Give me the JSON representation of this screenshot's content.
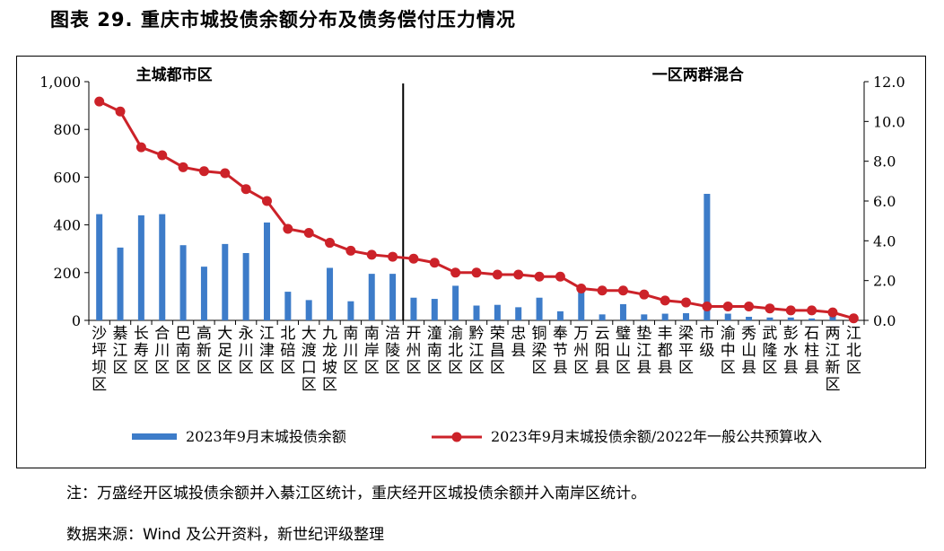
{
  "figure_title": "图表 29. 重庆市城投债余额分布及债务偿付压力情况",
  "note": "注：万盛经开区城投债余额并入綦江区统计，重庆经开区城投债余额并入南岸区统计。",
  "source": "数据来源：Wind 及公开资料，新世纪评级整理",
  "colors": {
    "bar": "#3D7CC9",
    "line": "#CC2229"
  },
  "chart_data": {
    "type": "bar",
    "title": "",
    "regions": [
      {
        "label": "主城都市区",
        "start_index": 0,
        "end_index": 14
      },
      {
        "label": "一区两群混合",
        "start_index": 15,
        "end_index": 37
      }
    ],
    "categories": [
      "沙坪坝区",
      "綦江区",
      "长寿区",
      "合川区",
      "巴南区",
      "高新区",
      "大足区",
      "永川区",
      "江津区",
      "北碚区",
      "大渡口区",
      "九龙坡区",
      "南川区",
      "南岸区",
      "涪陵区",
      "开州区",
      "潼南区",
      "渝北区",
      "黔江区",
      "荣昌区",
      "忠县",
      "铜梁区",
      "奉节县",
      "万州区",
      "云阳县",
      "璧山区",
      "垫江县",
      "丰都县",
      "梁平区",
      "市级",
      "渝中区",
      "秀山县",
      "武隆区",
      "彭水县",
      "石柱县",
      "两江新区",
      "江北区"
    ],
    "category_lines": [
      [
        "沙",
        "坪",
        "坝",
        "区"
      ],
      [
        "綦",
        "江",
        "区"
      ],
      [
        "长",
        "寿",
        "区"
      ],
      [
        "合",
        "川",
        "区"
      ],
      [
        "巴",
        "南",
        "区"
      ],
      [
        "高",
        "新",
        "区"
      ],
      [
        "大",
        "足",
        "区"
      ],
      [
        "永",
        "川",
        "区"
      ],
      [
        "江",
        "津",
        "区"
      ],
      [
        "北",
        "碚",
        "区"
      ],
      [
        "大",
        "渡",
        "口",
        "区"
      ],
      [
        "九",
        "龙",
        "坡",
        "区"
      ],
      [
        "南",
        "川",
        "区"
      ],
      [
        "南",
        "岸",
        "区"
      ],
      [
        "涪",
        "陵",
        "区"
      ],
      [
        "开",
        "州",
        "区"
      ],
      [
        "潼",
        "南",
        "区"
      ],
      [
        "渝",
        "北",
        "区"
      ],
      [
        "黔",
        "江",
        "区"
      ],
      [
        "荣",
        "昌",
        "区"
      ],
      [
        "忠",
        "县"
      ],
      [
        "铜",
        "梁",
        "区"
      ],
      [
        "奉",
        "节",
        "县"
      ],
      [
        "万",
        "州",
        "区"
      ],
      [
        "云",
        "阳",
        "县"
      ],
      [
        "璧",
        "山",
        "区"
      ],
      [
        "垫",
        "江",
        "县"
      ],
      [
        "丰",
        "都",
        "县"
      ],
      [
        "梁",
        "平",
        "区"
      ],
      [
        "市",
        "级"
      ],
      [
        "渝",
        "中",
        "区"
      ],
      [
        "秀",
        "山",
        "县"
      ],
      [
        "武",
        "隆",
        "区"
      ],
      [
        "彭",
        "水",
        "县"
      ],
      [
        "石",
        "柱",
        "县"
      ],
      [
        "两",
        "江",
        "新",
        "区"
      ],
      [
        "江",
        "北",
        "区"
      ]
    ],
    "series": [
      {
        "name": "2023年9月末城投债余额",
        "type": "bar",
        "axis": "left",
        "values": [
          445,
          305,
          440,
          445,
          315,
          225,
          320,
          282,
          410,
          120,
          85,
          220,
          80,
          195,
          195,
          95,
          90,
          145,
          62,
          65,
          55,
          95,
          38,
          135,
          25,
          68,
          25,
          28,
          30,
          530,
          28,
          15,
          12,
          12,
          8,
          42,
          8
        ]
      },
      {
        "name": "2023年9月末城投债余额/2022年一般公共预算收入",
        "type": "line",
        "axis": "right",
        "values": [
          11.0,
          10.5,
          8.7,
          8.3,
          7.7,
          7.5,
          7.4,
          6.6,
          6.0,
          4.6,
          4.4,
          3.9,
          3.5,
          3.3,
          3.2,
          3.1,
          2.9,
          2.4,
          2.4,
          2.3,
          2.3,
          2.2,
          2.2,
          1.6,
          1.5,
          1.5,
          1.3,
          1.0,
          0.9,
          0.7,
          0.7,
          0.7,
          0.6,
          0.5,
          0.5,
          0.4,
          0.1
        ]
      }
    ],
    "y_left": {
      "min": 0,
      "max": 1000,
      "ticks": [
        "0",
        "200",
        "400",
        "600",
        "800",
        "1,000"
      ]
    },
    "y_right": {
      "min": 0,
      "max": 12,
      "ticks": [
        "0.0",
        "2.0",
        "4.0",
        "6.0",
        "8.0",
        "10.0",
        "12.0"
      ]
    },
    "legend_position": "bottom"
  }
}
